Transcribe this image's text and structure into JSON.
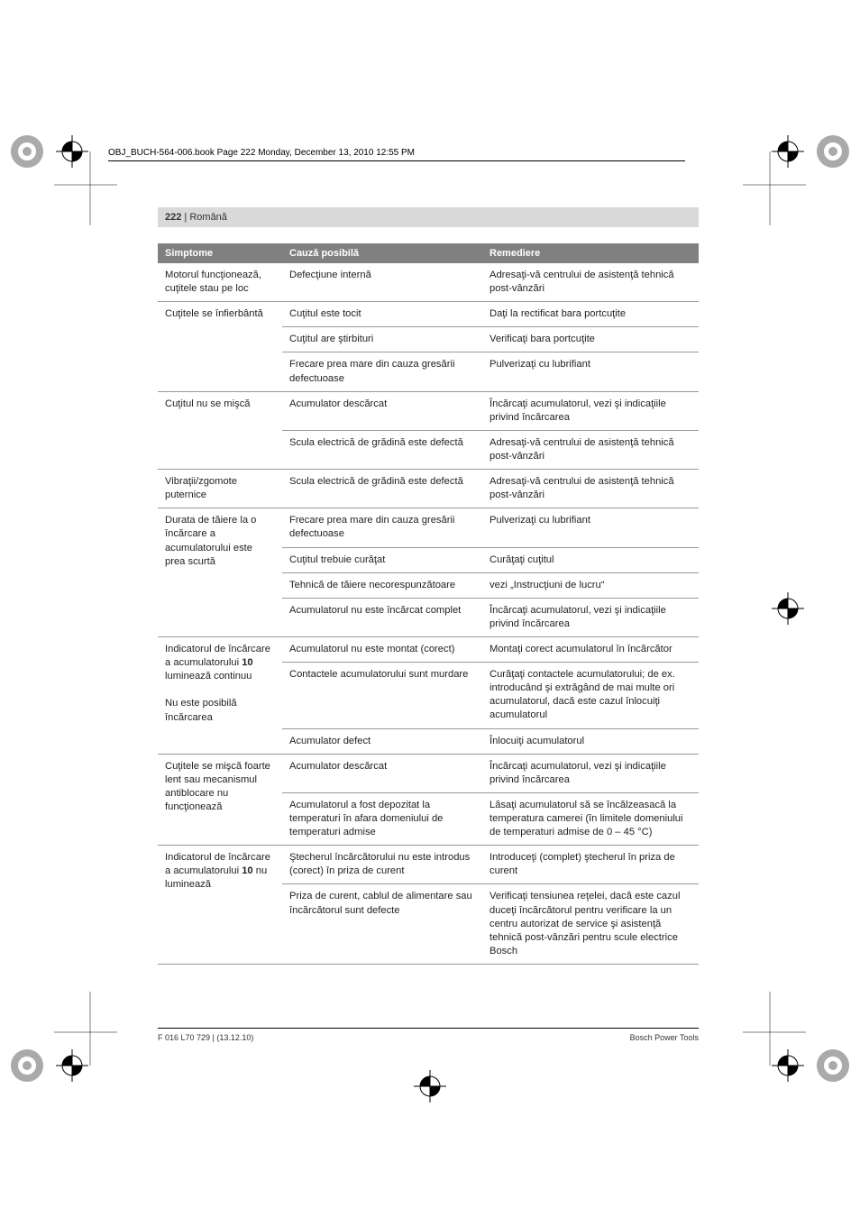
{
  "header_info": "OBJ_BUCH-564-006.book  Page 222  Monday, December 13, 2010  12:55 PM",
  "page_header": {
    "num": "222",
    "sep": " | ",
    "lang": "Română"
  },
  "table": {
    "headers": [
      "Simptome",
      "Cauză posibilă",
      "Remediere"
    ],
    "groups": [
      {
        "symptom": "Motorul funcţionează, cuţitele stau pe loc",
        "rows": [
          {
            "cause": "Defecţiune internă",
            "remedy": "Adresaţi-vă centrului de asistenţă tehnică post-vânzări"
          }
        ]
      },
      {
        "symptom": "Cuţitele se înfierbântă",
        "rows": [
          {
            "cause": "Cuţitul este tocit",
            "remedy": "Daţi la rectificat bara portcuţite"
          },
          {
            "cause": "Cuţitul are ştirbituri",
            "remedy": "Verificaţi bara portcuţite"
          },
          {
            "cause": "Frecare prea mare din cauza gresării defectuoase",
            "remedy": "Pulverizaţi cu lubrifiant"
          }
        ]
      },
      {
        "symptom": "Cuţitul nu se mişcă",
        "rows": [
          {
            "cause": "Acumulator descărcat",
            "remedy": "Încărcaţi acumulatorul, vezi şi indicaţiile privind încărcarea"
          },
          {
            "cause": "Scula electrică de grădină este defectă",
            "remedy": "Adresaţi-vă centrului de asistenţă tehnică post-vânzări"
          }
        ]
      },
      {
        "symptom": "Vibraţii/zgomote puternice",
        "rows": [
          {
            "cause": "Scula electrică de grădină este defectă",
            "remedy": "Adresaţi-vă centrului de asistenţă tehnică post-vânzări"
          }
        ]
      },
      {
        "symptom": "Durata de tăiere la o încărcare a acumulatorului este prea scurtă",
        "rows": [
          {
            "cause": "Frecare prea mare din cauza gresării defectuoase",
            "remedy": "Pulverizaţi cu lubrifiant"
          },
          {
            "cause": "Cuţitul trebuie curăţat",
            "remedy": "Curăţaţi cuţitul"
          },
          {
            "cause": "Tehnică de tăiere necorespunzătoare",
            "remedy": "vezi „Instrucţiuni de lucru“"
          },
          {
            "cause": "Acumulatorul nu este încărcat complet",
            "remedy": "Încărcaţi acumulatorul, vezi şi indicaţiile privind încărcarea"
          }
        ]
      },
      {
        "symptom_html": "Indicatorul de încărcare a acumulatorului <b>10</b> luminează continuu<br><br>Nu este posibilă încărcarea",
        "rows": [
          {
            "cause": "Acumulatorul nu este montat (corect)",
            "remedy": "Montaţi corect acumulatorul în încărcător"
          },
          {
            "cause": "Contactele acumulatorului sunt murdare",
            "remedy": "Curăţaţi contactele acumulatorului; de ex. introducând şi extrăgând de mai multe ori acumulatorul, dacă este cazul înlocuiţi acumulatorul"
          },
          {
            "cause": "Acumulator defect",
            "remedy": "Înlocuiţi acumulatorul"
          }
        ]
      },
      {
        "symptom": "Cuţitele se mişcă foarte lent sau mecanismul antiblocare nu funcţionează",
        "rows": [
          {
            "cause": "Acumulator descărcat",
            "remedy": "Încărcaţi acumulatorul, vezi şi indicaţiile privind încărcarea"
          },
          {
            "cause": "Acumulatorul a fost depozitat la temperaturi în afara domeniului de temperaturi admise",
            "remedy": "Lăsaţi acumulatorul să se încălzeasacă la temperatura camerei (în limitele domeniului de temperaturi admise de 0 – 45 °C)"
          }
        ]
      },
      {
        "symptom_html": "Indicatorul de încărcare a acumulatorului <b>10</b> nu luminează",
        "rows": [
          {
            "cause": "Ştecherul încărcătorului nu este introdus (corect) în priza de curent",
            "remedy": "Introduceţi (complet) ştecherul în priza de curent"
          },
          {
            "cause": "Priza de curent, cablul de alimentare sau încărcătorul sunt defecte",
            "remedy": "Verificaţi tensiunea reţelei, dacă este cazul duceţi încărcătorul pentru verificare la un centru autorizat de service şi asistenţă tehnică post-vânzări pentru scule electrice Bosch"
          }
        ]
      }
    ]
  },
  "footer": {
    "left": "F 016 L70 729 | (13.12.10)",
    "right": "Bosch Power Tools"
  }
}
